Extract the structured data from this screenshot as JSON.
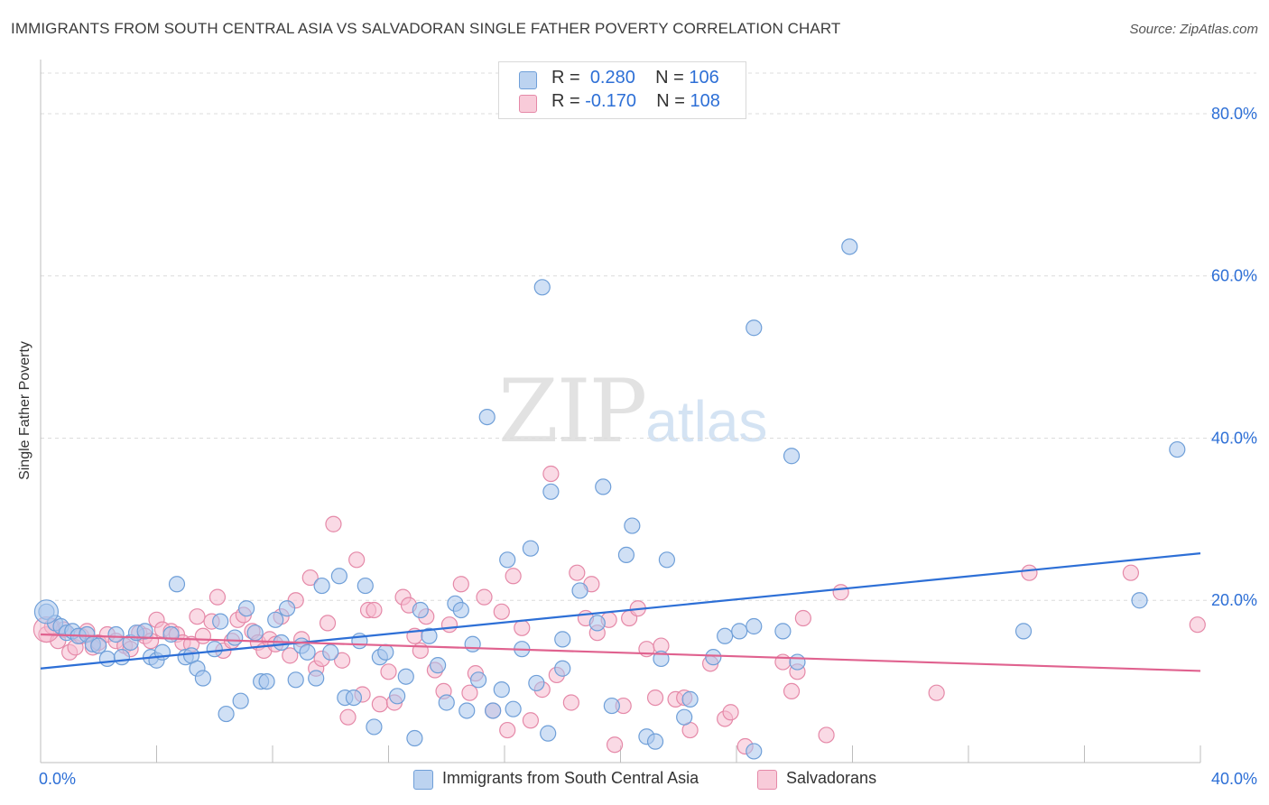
{
  "title": "IMMIGRANTS FROM SOUTH CENTRAL ASIA VS SALVADORAN SINGLE FATHER POVERTY CORRELATION CHART",
  "source": "Source: ZipAtlas.com",
  "watermark": {
    "zip": "ZIP",
    "atlas": "atlas"
  },
  "legend": {
    "r_label": "R =",
    "n_label": "N =",
    "rows": [
      {
        "r": "0.280",
        "n": "106"
      },
      {
        "r": "-0.170",
        "n": "108"
      }
    ]
  },
  "colors": {
    "blue_fill": "#a9c6ec",
    "blue_stroke": "#6f9fd8",
    "blue_line": "#2d6fd6",
    "pink_fill": "#f5bccf",
    "pink_stroke": "#e589a8",
    "pink_line": "#e0628f",
    "axis_label": "#2d6fd6",
    "grid": "#dcdcdc"
  },
  "chart_data": {
    "type": "scatter",
    "xlabel": "",
    "ylabel": "Single Father Poverty",
    "xlim": [
      0,
      40
    ],
    "ylim": [
      0,
      85
    ],
    "x_tick_labels": [
      "0.0%",
      "40.0%"
    ],
    "y_tick_labels": [
      "20.0%",
      "40.0%",
      "60.0%",
      "80.0%"
    ],
    "y_ticks": [
      20,
      40,
      60,
      80
    ],
    "grid": true,
    "legend_position": "top-center",
    "series": [
      {
        "name": "Immigrants from South Central Asia",
        "color": "blue",
        "trend": [
          [
            0,
            11.6
          ],
          [
            40,
            25.8
          ]
        ],
        "points": [
          [
            0.2,
            18.6
          ],
          [
            0.5,
            17.2
          ],
          [
            0.7,
            16.8
          ],
          [
            0.9,
            16.0
          ],
          [
            1.1,
            16.2
          ],
          [
            1.3,
            15.6
          ],
          [
            1.6,
            15.8
          ],
          [
            1.8,
            14.6
          ],
          [
            2.0,
            14.4
          ],
          [
            2.3,
            12.8
          ],
          [
            2.6,
            15.8
          ],
          [
            2.8,
            13.0
          ],
          [
            3.1,
            14.8
          ],
          [
            3.3,
            16.0
          ],
          [
            3.6,
            16.2
          ],
          [
            3.8,
            13.0
          ],
          [
            4.0,
            12.6
          ],
          [
            4.2,
            13.6
          ],
          [
            4.5,
            15.8
          ],
          [
            4.7,
            22.0
          ],
          [
            5.0,
            13.0
          ],
          [
            5.2,
            13.2
          ],
          [
            5.4,
            11.6
          ],
          [
            5.6,
            10.4
          ],
          [
            6.0,
            14.0
          ],
          [
            6.2,
            17.4
          ],
          [
            6.4,
            6.0
          ],
          [
            6.7,
            15.4
          ],
          [
            6.9,
            7.6
          ],
          [
            7.1,
            19.0
          ],
          [
            7.4,
            16.0
          ],
          [
            7.6,
            10.0
          ],
          [
            7.8,
            10.0
          ],
          [
            8.1,
            17.6
          ],
          [
            8.3,
            14.8
          ],
          [
            8.5,
            19.0
          ],
          [
            8.8,
            10.2
          ],
          [
            9.0,
            14.4
          ],
          [
            9.2,
            13.6
          ],
          [
            9.5,
            10.4
          ],
          [
            9.7,
            21.8
          ],
          [
            10.0,
            13.6
          ],
          [
            10.3,
            23.0
          ],
          [
            10.5,
            8.0
          ],
          [
            10.8,
            8.0
          ],
          [
            11.0,
            15.0
          ],
          [
            11.2,
            21.8
          ],
          [
            11.5,
            4.4
          ],
          [
            11.7,
            13.0
          ],
          [
            11.9,
            13.6
          ],
          [
            12.3,
            8.2
          ],
          [
            12.6,
            10.6
          ],
          [
            12.9,
            3.0
          ],
          [
            13.1,
            18.8
          ],
          [
            13.4,
            15.6
          ],
          [
            13.7,
            12.0
          ],
          [
            14.0,
            7.4
          ],
          [
            14.3,
            19.6
          ],
          [
            14.5,
            18.8
          ],
          [
            14.7,
            6.4
          ],
          [
            14.9,
            14.6
          ],
          [
            15.1,
            10.2
          ],
          [
            15.4,
            42.6
          ],
          [
            15.6,
            6.4
          ],
          [
            15.9,
            9.0
          ],
          [
            16.1,
            25.0
          ],
          [
            16.3,
            6.6
          ],
          [
            16.6,
            14.0
          ],
          [
            16.9,
            26.4
          ],
          [
            17.1,
            9.8
          ],
          [
            17.3,
            58.6
          ],
          [
            17.5,
            3.6
          ],
          [
            17.6,
            33.4
          ],
          [
            18.0,
            11.6
          ],
          [
            18.0,
            15.2
          ],
          [
            18.6,
            21.2
          ],
          [
            19.2,
            17.2
          ],
          [
            19.4,
            34.0
          ],
          [
            19.7,
            7.0
          ],
          [
            20.2,
            25.6
          ],
          [
            20.4,
            29.2
          ],
          [
            20.9,
            3.2
          ],
          [
            21.2,
            2.6
          ],
          [
            21.4,
            12.8
          ],
          [
            21.6,
            25.0
          ],
          [
            22.2,
            5.6
          ],
          [
            22.4,
            7.8
          ],
          [
            23.2,
            13.0
          ],
          [
            23.6,
            15.6
          ],
          [
            24.1,
            16.2
          ],
          [
            24.6,
            1.4
          ],
          [
            24.6,
            53.6
          ],
          [
            24.6,
            16.8
          ],
          [
            25.6,
            16.2
          ],
          [
            25.9,
            37.8
          ],
          [
            26.1,
            12.4
          ],
          [
            27.9,
            63.6
          ],
          [
            33.9,
            16.2
          ],
          [
            37.9,
            20.0
          ],
          [
            39.2,
            38.6
          ]
        ]
      },
      {
        "name": "Salvadorans",
        "color": "pink",
        "trend": [
          [
            0,
            15.8
          ],
          [
            40,
            11.3
          ]
        ],
        "points": [
          [
            0.2,
            15.8
          ],
          [
            0.4,
            16.8
          ],
          [
            0.6,
            15.0
          ],
          [
            0.8,
            16.4
          ],
          [
            1.0,
            13.6
          ],
          [
            1.2,
            14.2
          ],
          [
            1.4,
            15.6
          ],
          [
            1.6,
            16.2
          ],
          [
            1.8,
            14.2
          ],
          [
            2.0,
            14.8
          ],
          [
            2.3,
            15.8
          ],
          [
            2.6,
            15.0
          ],
          [
            2.9,
            14.4
          ],
          [
            3.1,
            14.0
          ],
          [
            3.4,
            16.0
          ],
          [
            3.6,
            15.6
          ],
          [
            3.8,
            15.0
          ],
          [
            4.0,
            17.6
          ],
          [
            4.2,
            16.4
          ],
          [
            4.5,
            16.2
          ],
          [
            4.7,
            15.8
          ],
          [
            4.9,
            14.8
          ],
          [
            5.2,
            14.6
          ],
          [
            5.4,
            18.0
          ],
          [
            5.6,
            15.6
          ],
          [
            5.9,
            17.4
          ],
          [
            6.1,
            20.4
          ],
          [
            6.3,
            13.8
          ],
          [
            6.6,
            15.0
          ],
          [
            6.8,
            17.6
          ],
          [
            7.0,
            18.2
          ],
          [
            7.3,
            16.2
          ],
          [
            7.5,
            14.8
          ],
          [
            7.7,
            13.8
          ],
          [
            7.9,
            15.2
          ],
          [
            8.1,
            14.6
          ],
          [
            8.3,
            18.0
          ],
          [
            8.6,
            13.2
          ],
          [
            8.8,
            20.0
          ],
          [
            9.0,
            15.2
          ],
          [
            9.3,
            22.8
          ],
          [
            9.5,
            11.6
          ],
          [
            9.7,
            12.8
          ],
          [
            9.9,
            17.2
          ],
          [
            10.1,
            29.4
          ],
          [
            10.4,
            12.6
          ],
          [
            10.6,
            5.6
          ],
          [
            10.9,
            25.0
          ],
          [
            11.1,
            8.4
          ],
          [
            11.3,
            18.8
          ],
          [
            11.5,
            18.8
          ],
          [
            11.7,
            7.2
          ],
          [
            12.0,
            11.2
          ],
          [
            12.2,
            7.4
          ],
          [
            12.5,
            20.4
          ],
          [
            12.7,
            19.4
          ],
          [
            12.9,
            15.6
          ],
          [
            13.1,
            13.8
          ],
          [
            13.3,
            18.0
          ],
          [
            13.6,
            11.4
          ],
          [
            13.9,
            8.8
          ],
          [
            14.1,
            17.0
          ],
          [
            14.5,
            22.0
          ],
          [
            14.8,
            8.6
          ],
          [
            15.0,
            11.0
          ],
          [
            15.3,
            20.4
          ],
          [
            15.6,
            6.4
          ],
          [
            15.9,
            18.6
          ],
          [
            16.1,
            4.0
          ],
          [
            16.3,
            23.0
          ],
          [
            16.6,
            16.6
          ],
          [
            16.9,
            5.2
          ],
          [
            17.3,
            9.0
          ],
          [
            17.6,
            35.6
          ],
          [
            17.8,
            10.8
          ],
          [
            18.3,
            7.4
          ],
          [
            18.5,
            23.4
          ],
          [
            18.8,
            17.8
          ],
          [
            19.0,
            22.0
          ],
          [
            19.2,
            16.0
          ],
          [
            19.6,
            17.6
          ],
          [
            19.8,
            2.2
          ],
          [
            20.1,
            7.0
          ],
          [
            20.3,
            17.8
          ],
          [
            20.6,
            19.0
          ],
          [
            20.9,
            14.0
          ],
          [
            21.2,
            8.0
          ],
          [
            21.4,
            14.4
          ],
          [
            21.9,
            7.8
          ],
          [
            22.2,
            8.0
          ],
          [
            22.4,
            4.0
          ],
          [
            23.1,
            12.2
          ],
          [
            23.6,
            5.4
          ],
          [
            23.8,
            6.2
          ],
          [
            24.3,
            2.0
          ],
          [
            25.6,
            12.4
          ],
          [
            25.9,
            8.8
          ],
          [
            26.1,
            11.2
          ],
          [
            26.3,
            17.8
          ],
          [
            27.1,
            3.4
          ],
          [
            27.6,
            21.0
          ],
          [
            30.9,
            8.6
          ],
          [
            34.1,
            23.4
          ],
          [
            37.6,
            23.4
          ],
          [
            39.9,
            17.0
          ]
        ]
      }
    ]
  },
  "bottom_legend": [
    "Immigrants from South Central Asia",
    "Salvadorans"
  ]
}
